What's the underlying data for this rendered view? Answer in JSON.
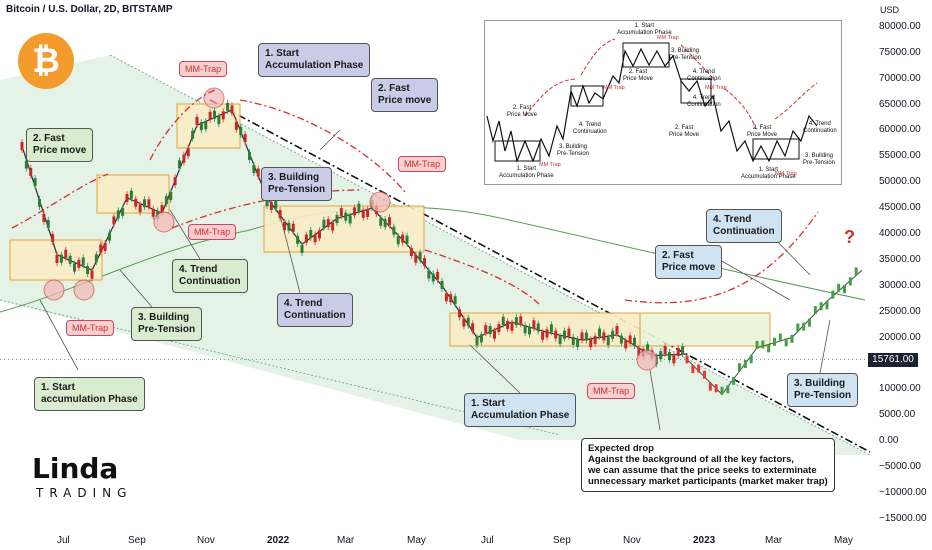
{
  "chart_title": "Bitcoin / U.S. Dollar, 2D, BITSTAMP",
  "currency": "USD",
  "current_price_label": "15761.00",
  "question_mark": "?",
  "logo": {
    "brand": "Linda",
    "sub": "TRADING"
  },
  "yticks": [
    "80000.00",
    "75000.00",
    "70000.00",
    "65000.00",
    "60000.00",
    "55000.00",
    "50000.00",
    "45000.00",
    "40000.00",
    "35000.00",
    "30000.00",
    "25000.00",
    "20000.00",
    "10000.00",
    "5000.00",
    "0.00",
    "−5000.00",
    "−10000.00",
    "−15000.00"
  ],
  "xticks": [
    "Jul",
    "Sep",
    "Nov",
    "2022",
    "Mar",
    "May",
    "Jul",
    "Sep",
    "Nov",
    "2023",
    "Mar",
    "May"
  ],
  "labels": {
    "start1": "1. Start\naccumulation Phase",
    "fast1": "2. Fast\nPrice move",
    "build1": "3. Building\nPre-Tension",
    "trend1": "4. Trend\nContinuation",
    "start2": "1. Start\nAccumulation Phase",
    "fast2": "2. Fast\nPrice move",
    "build2": "3. Building\nPre-Tension",
    "trend2": "4. Trend\nContinuation",
    "start3": "1. Start\nAccumulation Phase",
    "fast3": "2. Fast\nPrice move",
    "build3": "3. Building\nPre-Tension",
    "trend3": "4. Trend\nContinuation"
  },
  "traps": [
    "MM-Trap",
    "MM-Trap",
    "MM-Trap",
    "MM-Trap",
    "MM-Trap"
  ],
  "note": "Expected drop\nAgainst the background of all the key factors,\nwe can assume that the price seeks to exterminate\nunnecessary market participants (market maker trap)",
  "inset": {
    "start_top": "1. Start\nAccumulation Phase",
    "build_top": "3. Building\nPre-Tension",
    "fast_top": "2. Fast\nPrice Move",
    "trend_top": "4. Trend\nContinuation",
    "fast_left": "2. Fast\nPrice Move",
    "trend_left": "4. Trend\nContinuation",
    "build_left": "3. Building\nPre-Tension",
    "start_left": "1. Start\nAccumulation Phase",
    "trend_mid": "4. Trend\nContinuation",
    "fast_mid": "2. Fast\nPrice Move",
    "fast_right": "2. Fast\nPrice Move",
    "trend_right": "4. Trend\nContinuation",
    "build_right": "3. Building\nPre-Tension",
    "start_right": "1. Start\nAccumulation Phase",
    "trap": "MM Trap"
  },
  "chart_data": {
    "type": "candlestick",
    "title": "Bitcoin / U.S. Dollar, 2D, BITSTAMP",
    "y_unit": "USD",
    "ylim": [
      -15000,
      80000
    ],
    "x_ticks": [
      "Jul",
      "Sep",
      "Nov",
      "2022",
      "Mar",
      "May",
      "Jul",
      "Sep",
      "Nov",
      "2023",
      "Mar",
      "May"
    ],
    "current_price": 15761,
    "series": [
      {
        "name": "historical",
        "points": [
          [
            "2021-05",
            57000
          ],
          [
            "2021-06",
            36000
          ],
          [
            "2021-07",
            33000
          ],
          [
            "2021-08",
            47000
          ],
          [
            "2021-09",
            44000
          ],
          [
            "2021-10",
            61000
          ],
          [
            "2021-11",
            64000
          ],
          [
            "2021-12",
            47000
          ],
          [
            "2022-01",
            38000
          ],
          [
            "2022-02",
            43000
          ],
          [
            "2022-03",
            45000
          ],
          [
            "2022-04",
            38000
          ],
          [
            "2022-05",
            30000
          ],
          [
            "2022-06",
            20000
          ],
          [
            "2022-07",
            23000
          ],
          [
            "2022-08",
            21000
          ],
          [
            "2022-09",
            19500
          ],
          [
            "2022-10",
            20500
          ],
          [
            "2022-11",
            16500
          ],
          [
            "2022-12",
            16800
          ]
        ]
      },
      {
        "name": "projection",
        "points": [
          [
            "2022-12",
            15761
          ],
          [
            "2023-01",
            9000
          ],
          [
            "2023-02",
            18000
          ],
          [
            "2023-03",
            20000
          ],
          [
            "2023-04",
            27000
          ],
          [
            "2023-05",
            33000
          ]
        ]
      }
    ]
  }
}
